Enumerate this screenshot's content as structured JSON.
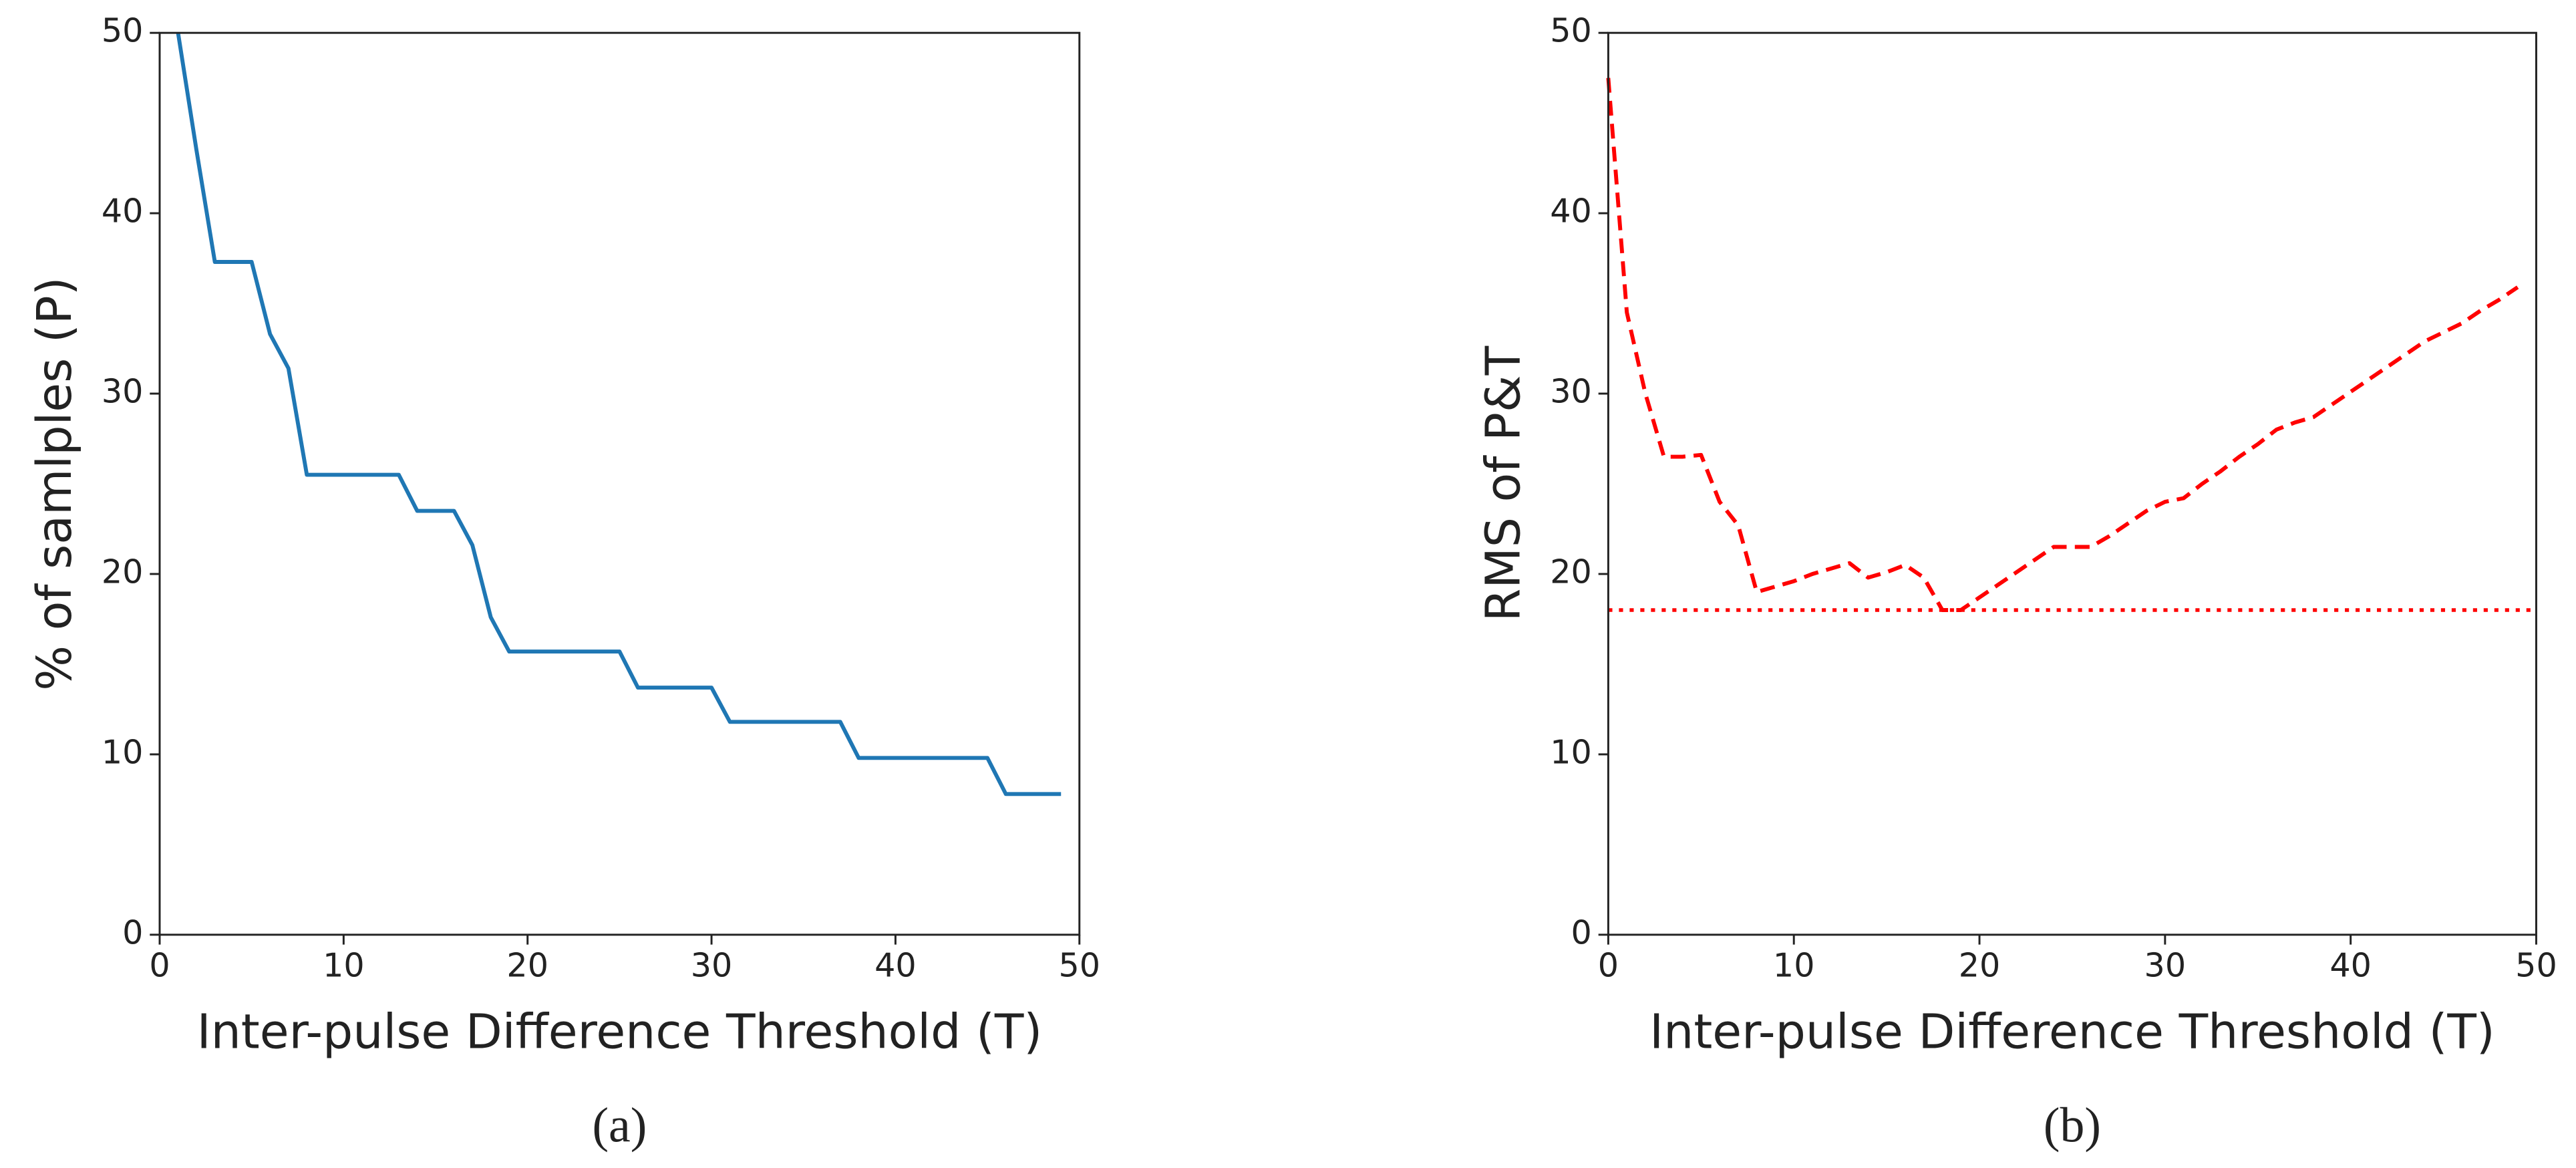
{
  "chart_data": [
    {
      "type": "line",
      "x_label": "Inter-pulse Difference Threshold (T)",
      "y_label": "% of samlples (P)",
      "caption": "(a)",
      "x": [
        1,
        2,
        3,
        4,
        5,
        6,
        7,
        8,
        9,
        10,
        11,
        12,
        13,
        14,
        15,
        16,
        17,
        18,
        19,
        20,
        21,
        22,
        23,
        24,
        25,
        26,
        27,
        28,
        29,
        30,
        31,
        32,
        33,
        34,
        35,
        36,
        37,
        38,
        39,
        40,
        41,
        42,
        43,
        44,
        45,
        46,
        47,
        48,
        49
      ],
      "series": [
        {
          "color": "#1f77b4",
          "style": "solid",
          "values": [
            50,
            43.5,
            37.3,
            37.3,
            37.3,
            33.3,
            31.4,
            25.5,
            25.5,
            25.5,
            25.5,
            25.5,
            25.5,
            23.5,
            23.5,
            23.5,
            21.6,
            17.6,
            15.7,
            15.7,
            15.7,
            15.7,
            15.7,
            15.7,
            15.7,
            13.7,
            13.7,
            13.7,
            13.7,
            13.7,
            11.8,
            11.8,
            11.8,
            11.8,
            11.8,
            11.8,
            11.8,
            9.8,
            9.8,
            9.8,
            9.8,
            9.8,
            9.8,
            9.8,
            9.8,
            7.8,
            7.8,
            7.8,
            7.8
          ]
        }
      ],
      "xlim": [
        0,
        50
      ],
      "ylim": [
        0,
        50
      ],
      "xticks": [
        0,
        10,
        20,
        30,
        40,
        50
      ],
      "yticks": [
        0,
        10,
        20,
        30,
        40,
        50
      ]
    },
    {
      "type": "line",
      "x_label": "Inter-pulse Difference Threshold (T)",
      "y_label": "RMS of P&T",
      "caption": "(b)",
      "x": [
        0,
        1,
        2,
        3,
        4,
        5,
        6,
        7,
        8,
        9,
        10,
        11,
        12,
        13,
        14,
        15,
        16,
        17,
        18,
        19,
        20,
        21,
        22,
        23,
        24,
        25,
        26,
        27,
        28,
        29,
        30,
        31,
        32,
        33,
        34,
        35,
        36,
        37,
        38,
        39,
        40,
        41,
        42,
        43,
        44,
        45,
        46,
        47,
        48,
        49
      ],
      "series": [
        {
          "color": "#ff0000",
          "style": "dashed",
          "values": [
            47.5,
            34.5,
            30,
            26.5,
            26.5,
            26.6,
            24,
            22.7,
            19,
            19.3,
            19.6,
            20,
            20.3,
            20.6,
            19.8,
            20.1,
            20.5,
            19.8,
            18,
            18,
            18.7,
            19.4,
            20.1,
            20.8,
            21.5,
            21.5,
            21.5,
            22.1,
            22.8,
            23.5,
            24,
            24.2,
            25,
            25.7,
            26.5,
            27.2,
            28,
            28.4,
            28.7,
            29.4,
            30.1,
            30.8,
            31.5,
            32.2,
            32.9,
            33.4,
            33.9,
            34.6,
            35.2,
            35.9
          ]
        }
      ],
      "reference_line": {
        "value": 18,
        "color": "#ff0000",
        "style": "dotted"
      },
      "xlim": [
        0,
        50
      ],
      "ylim": [
        0,
        50
      ],
      "xticks": [
        0,
        10,
        20,
        30,
        40,
        50
      ],
      "yticks": [
        0,
        10,
        20,
        30,
        40,
        50
      ]
    }
  ]
}
